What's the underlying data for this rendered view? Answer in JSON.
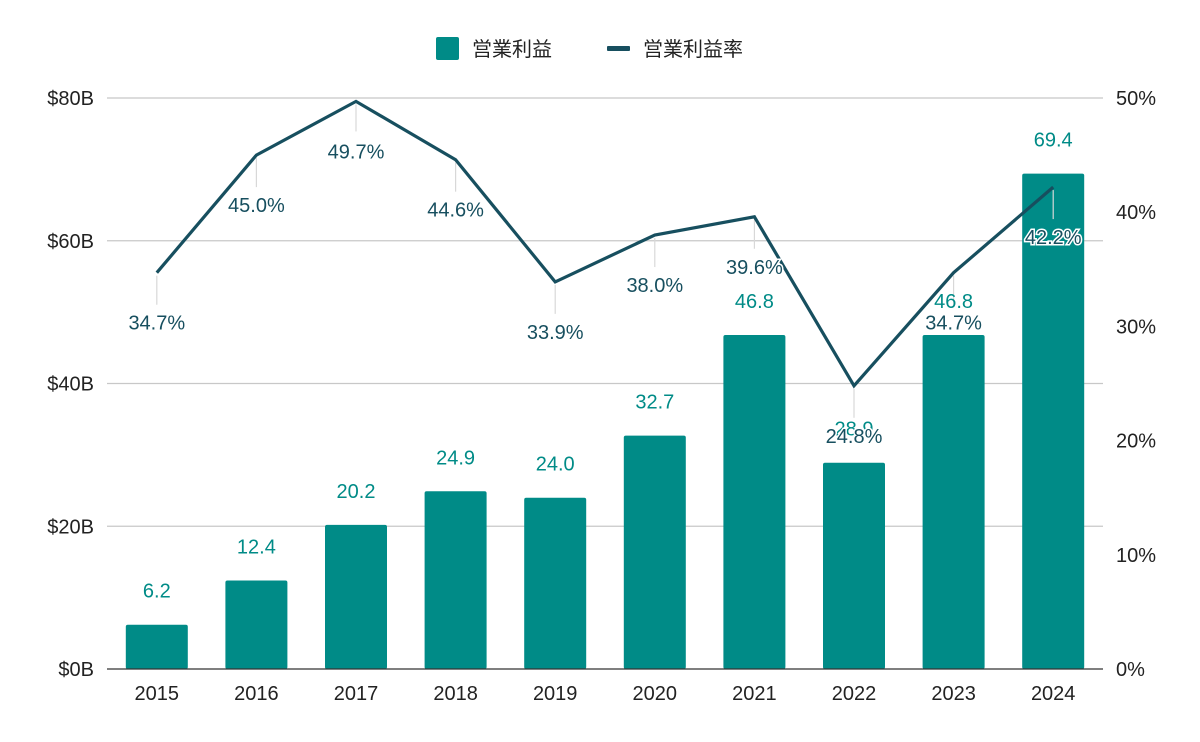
{
  "chart_data": {
    "type": "bar",
    "categories": [
      "2015",
      "2016",
      "2017",
      "2018",
      "2019",
      "2020",
      "2021",
      "2022",
      "2023",
      "2024"
    ],
    "series": [
      {
        "name": "営業利益",
        "type": "bar",
        "axis": "left",
        "color": "#008B87",
        "values": [
          6.2,
          12.4,
          20.2,
          24.9,
          24.0,
          32.7,
          46.8,
          28.9,
          46.8,
          69.4
        ],
        "labels": [
          "6.2",
          "12.4",
          "20.2",
          "24.9",
          "24.0",
          "32.7",
          "46.8",
          "28.9",
          "46.8",
          "69.4"
        ]
      },
      {
        "name": "営業利益率",
        "type": "line",
        "axis": "right",
        "color": "#174F5F",
        "values": [
          34.7,
          45.0,
          49.7,
          44.6,
          33.9,
          38.0,
          39.6,
          24.8,
          34.7,
          42.2
        ],
        "labels": [
          "34.7%",
          "45.0%",
          "49.7%",
          "44.6%",
          "33.9%",
          "38.0%",
          "39.6%",
          "24.8%",
          "34.7%",
          "42.2%"
        ]
      }
    ],
    "y_left": {
      "min": 0,
      "max": 80,
      "ticks": [
        0,
        20,
        40,
        60,
        80
      ],
      "tick_labels": [
        "$0B",
        "$20B",
        "$40B",
        "$60B",
        "$80B"
      ]
    },
    "y_right": {
      "min": 0,
      "max": 50,
      "ticks": [
        0,
        10,
        20,
        30,
        40,
        50
      ],
      "tick_labels": [
        "0%",
        "10%",
        "20%",
        "30%",
        "40%",
        "50%"
      ]
    },
    "grid": true,
    "legend": "top-center",
    "gridline_color": "#C8C8C8"
  }
}
